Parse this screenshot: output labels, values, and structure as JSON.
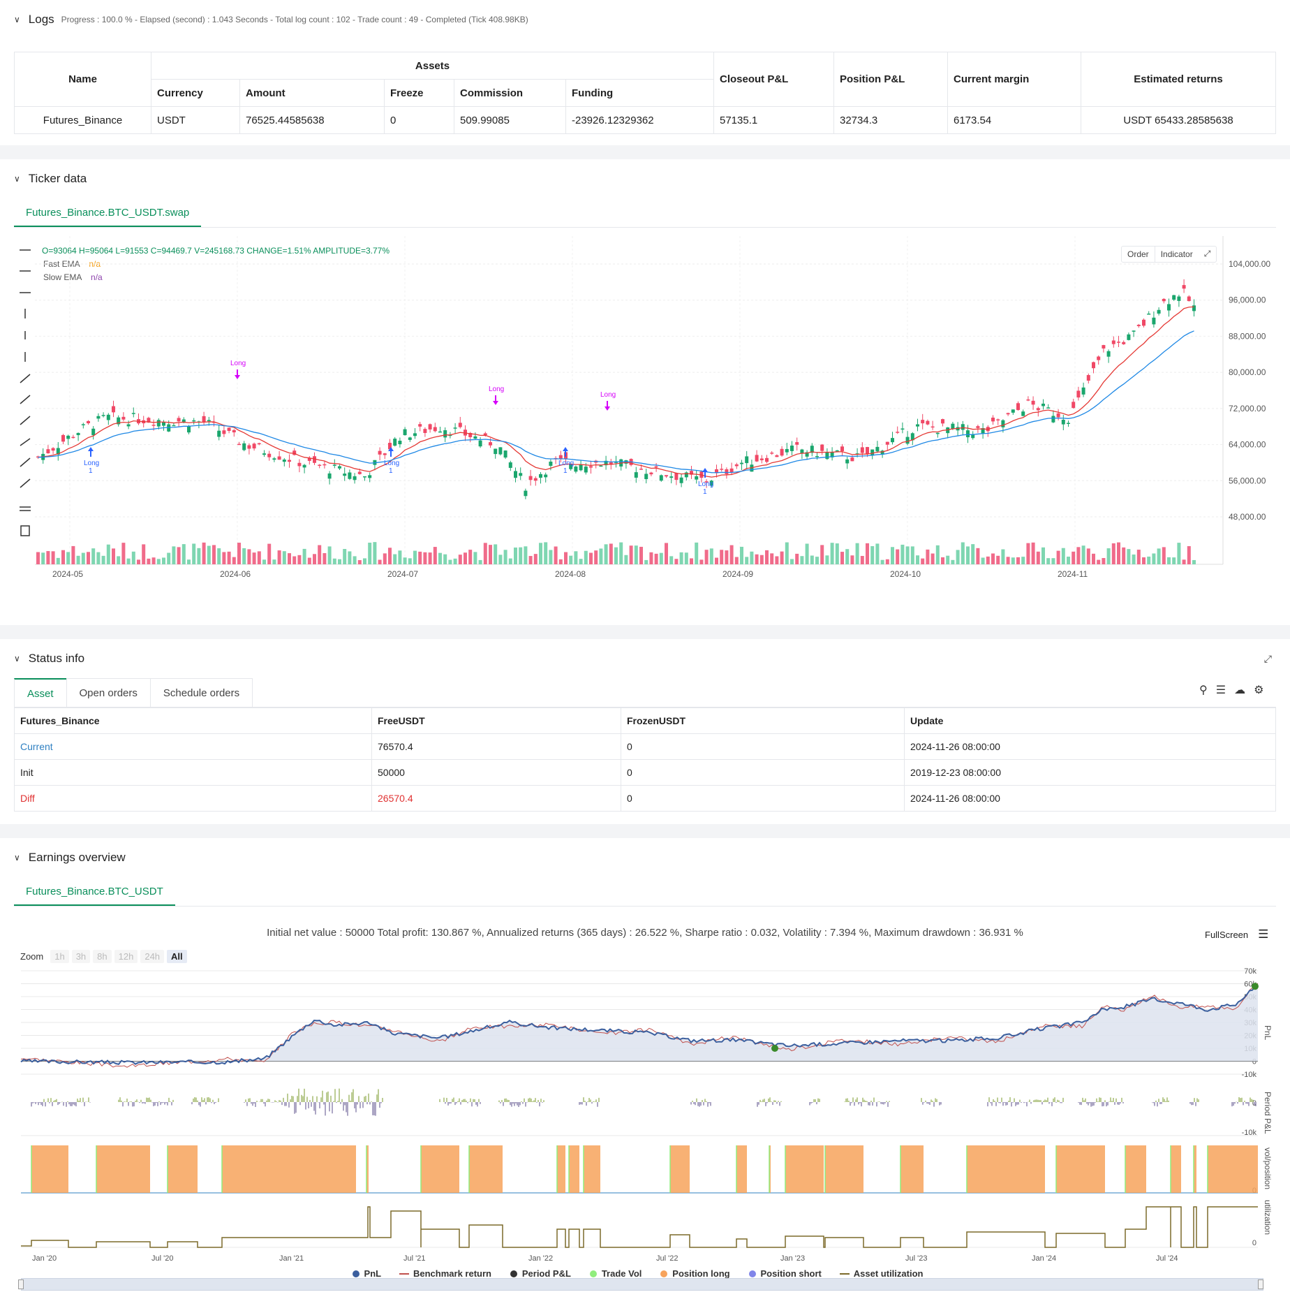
{
  "logs": {
    "title": "Logs",
    "status": "Progress : 100.0 % - Elapsed (second) : 1.043  Seconds - Total log count : 102 - Trade count : 49 - Completed (Tick 408.98KB)",
    "headers": {
      "name": "Name",
      "assets": "Assets",
      "currency": "Currency",
      "amount": "Amount",
      "freeze": "Freeze",
      "commission": "Commission",
      "funding": "Funding",
      "closeout": "Closeout P&L",
      "position": "Position P&L",
      "margin": "Current margin",
      "returns": "Estimated returns"
    },
    "row": {
      "name": "Futures_Binance",
      "currency": "USDT",
      "amount": "76525.44585638",
      "freeze": "0",
      "commission": "509.99085",
      "funding": "-23926.12329362",
      "closeout": "57135.1",
      "position": "32734.3",
      "margin": "6173.54",
      "returns": "USDT 65433.28585638"
    }
  },
  "ticker": {
    "title": "Ticker data",
    "tab": "Futures_Binance.BTC_USDT.swap",
    "ohlc": "O=93064  H=95064  L=91553  C=94469.7  V=245168.73  CHANGE=1.51%  AMPLITUDE=3.77%",
    "fast_label": "Fast EMA",
    "fast_val": "n/a",
    "slow_label": "Slow EMA",
    "slow_val": "n/a",
    "btn_order": "Order",
    "btn_indicator": "Indicator",
    "y_ticks": [
      "104,000.00",
      "96,000.00",
      "88,000.00",
      "80,000.00",
      "72,000.00",
      "64,000.00",
      "56,000.00",
      "48,000.00"
    ],
    "x_ticks": [
      "2024-05",
      "2024-06",
      "2024-07",
      "2024-08",
      "2024-09",
      "2024-10",
      "2024-11"
    ],
    "markers": {
      "long": "Long",
      "one": "1"
    }
  },
  "status": {
    "title": "Status info",
    "tabs": [
      "Asset",
      "Open orders",
      "Schedule orders"
    ],
    "headers": [
      "Futures_Binance",
      "FreeUSDT",
      "FrozenUSDT",
      "Update"
    ],
    "rows": [
      {
        "label": "Current",
        "free": "76570.4",
        "frozen": "0",
        "update": "2024-11-26 08:00:00"
      },
      {
        "label": "Init",
        "free": "50000",
        "frozen": "0",
        "update": "2019-12-23 08:00:00"
      },
      {
        "label": "Diff",
        "free": "26570.4",
        "frozen": "0",
        "update": "2024-11-26 08:00:00"
      }
    ]
  },
  "earnings": {
    "title": "Earnings overview",
    "tab": "Futures_Binance.BTC_USDT",
    "summary": "Initial net value : 50000  Total profit: 130.867 %, Annualized returns (365 days) : 26.522 %, Sharpe ratio : 0.032, Volatility : 7.394 %, Maximum drawdown : 36.931 %",
    "fullscreen": "FullScreen",
    "zoom_label": "Zoom",
    "zoom": [
      "1h",
      "3h",
      "8h",
      "12h",
      "24h",
      "All"
    ],
    "pnl_ticks": [
      "70k",
      "60k",
      "50k",
      "40k",
      "30k",
      "20k",
      "10k",
      "0",
      "-10k"
    ],
    "period_ticks": [
      "0",
      "-10k"
    ],
    "vol_tick": "0",
    "util_tick": "0",
    "axis_pnl": "PnL",
    "axis_period": "Period P&L",
    "axis_vol": "vol/position",
    "axis_util": "utilization",
    "x_ticks": [
      "Jan '20",
      "Jul '20",
      "Jan '21",
      "Jul '21",
      "Jan '22",
      "Jul '22",
      "Jan '23",
      "Jul '23",
      "Jan '24",
      "Jul '24"
    ],
    "legend": [
      "PnL",
      "Benchmark return",
      "Period P&L",
      "Trade Vol",
      "Position long",
      "Position short",
      "Asset utilization"
    ],
    "colors": {
      "pnl": "#3b5f9e",
      "bench": "#c0504d",
      "period": "#333333",
      "vol": "#90ed7d",
      "long": "#f7a35c",
      "short": "#8085e9",
      "util": "#7c6a2a"
    }
  }
}
